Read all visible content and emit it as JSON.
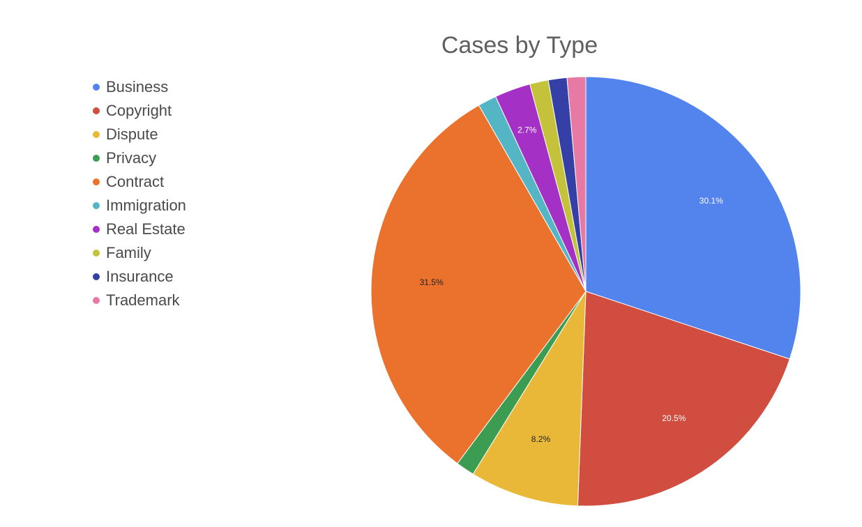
{
  "chart_data": {
    "type": "pie",
    "title": "Cases by Type",
    "legend_position": "left",
    "start": "top",
    "direction": "clockwise",
    "slices": [
      {
        "label": "Business",
        "value": 30.1,
        "color": "#5383ec",
        "data_label": "30.1%",
        "label_color": "#ffffff"
      },
      {
        "label": "Copyright",
        "value": 20.5,
        "color": "#d04d3f",
        "data_label": "20.5%",
        "label_color": "#ffffff"
      },
      {
        "label": "Dispute",
        "value": 8.2,
        "color": "#e9b839",
        "data_label": "8.2%",
        "label_color": "#222222"
      },
      {
        "label": "Privacy",
        "value": 1.4,
        "color": "#3b9c52",
        "data_label": "",
        "label_color": "#ffffff"
      },
      {
        "label": "Contract",
        "value": 31.5,
        "color": "#ea722c",
        "data_label": "31.5%",
        "label_color": "#222222"
      },
      {
        "label": "Immigration",
        "value": 1.4,
        "color": "#54b5c5",
        "data_label": "",
        "label_color": "#ffffff"
      },
      {
        "label": "Real Estate",
        "value": 2.7,
        "color": "#a430c6",
        "data_label": "2.7%",
        "label_color": "#ffffff"
      },
      {
        "label": "Family",
        "value": 1.4,
        "color": "#c3c23a",
        "data_label": "",
        "label_color": "#222222"
      },
      {
        "label": "Insurance",
        "value": 1.4,
        "color": "#3540a6",
        "data_label": "",
        "label_color": "#ffffff"
      },
      {
        "label": "Trademark",
        "value": 1.4,
        "color": "#e67aa4",
        "data_label": "",
        "label_color": "#222222"
      }
    ]
  }
}
